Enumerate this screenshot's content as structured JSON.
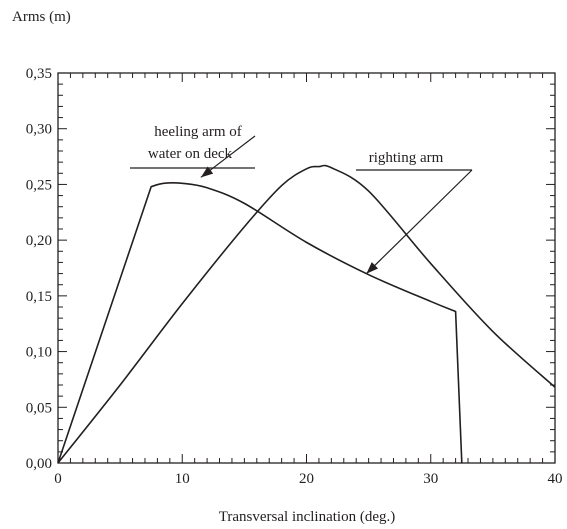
{
  "chart_data": {
    "type": "line",
    "title": "",
    "ylabel": "Arms (m)",
    "xlabel": "Transversal inclination (deg.)",
    "xlim": [
      0,
      40
    ],
    "ylim": [
      0,
      0.35
    ],
    "grid": false,
    "x_ticks": [
      0,
      10,
      20,
      30,
      40
    ],
    "x_tick_labels": [
      "0",
      "10",
      "20",
      "30",
      "40"
    ],
    "y_ticks": [
      0,
      0.05,
      0.1,
      0.15,
      0.2,
      0.25,
      0.3,
      0.35
    ],
    "y_tick_labels": [
      "0,00",
      "0,05",
      "0,10",
      "0,15",
      "0,20",
      "0,25",
      "0,30",
      "0,35"
    ],
    "series": [
      {
        "name": "heeling arm of water on deck",
        "x": [
          0,
          7.5,
          8.5,
          10,
          12,
          15,
          20,
          25,
          30,
          32,
          32.5
        ],
        "y": [
          0,
          0.248,
          0.251,
          0.251,
          0.247,
          0.233,
          0.198,
          0.169,
          0.145,
          0.136,
          0
        ]
      },
      {
        "name": "righting arm",
        "x": [
          0,
          5,
          10,
          15,
          18,
          20,
          21,
          22,
          25,
          30,
          35,
          40
        ],
        "y": [
          0,
          0.07,
          0.143,
          0.212,
          0.249,
          0.264,
          0.266,
          0.265,
          0.244,
          0.179,
          0.118,
          0.068
        ]
      }
    ],
    "annotations": [
      {
        "lines": [
          "heeling arm of",
          "water on deck"
        ],
        "points_to": [
          11.5,
          0.251
        ],
        "text_at": [
          6.5,
          0.325
        ]
      },
      {
        "lines": [
          "righting arm"
        ],
        "points_to": [
          25.3,
          0.195
        ],
        "text_at": [
          30.5,
          0.28
        ]
      }
    ],
    "colors": {
      "line": "#231f20",
      "axis": "#231f20"
    }
  }
}
